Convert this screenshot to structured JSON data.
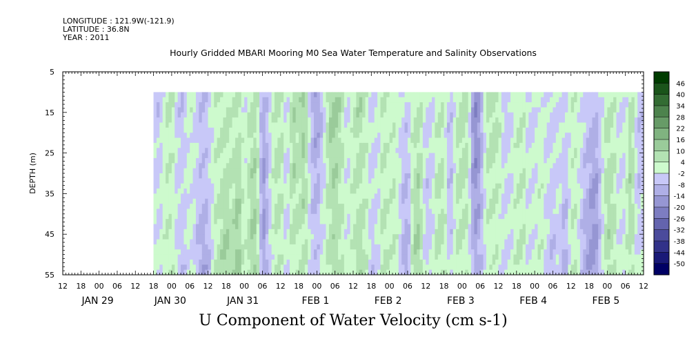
{
  "header": {
    "longitude": "LONGITUDE : 121.9W(-121.9)",
    "latitude": "LATITUDE : 36.8N",
    "year": "YEAR : 2011"
  },
  "title": "Hourly Gridded MBARI Mooring M0 Sea Water Temperature and Salinity Observations",
  "variable_title": "U Component of Water Velocity (cm s-1)",
  "chart_data": {
    "type": "heatmap",
    "title": "Hourly Gridded MBARI Mooring M0 Sea Water Temperature and Salinity Observations",
    "xlabel": "",
    "ylabel": "DEPTH (m)",
    "units": "cm s-1",
    "x_range_hours": [
      -12,
      180
    ],
    "data_start_hour": 18,
    "y_range": [
      5,
      55
    ],
    "y_reversed": true,
    "data_depth_range": [
      10,
      55
    ],
    "y_ticks": [
      5,
      15,
      25,
      35,
      45,
      55
    ],
    "x_hour_ticks": [
      "12",
      "18",
      "00",
      "06",
      "12",
      "18",
      "00",
      "06",
      "12",
      "18",
      "00",
      "06",
      "12",
      "18",
      "00",
      "06",
      "12",
      "18",
      "00",
      "06",
      "12",
      "18",
      "00",
      "06",
      "12",
      "18",
      "00",
      "06",
      "12",
      "18",
      "00",
      "06",
      "12"
    ],
    "date_labels": [
      {
        "label": "JAN 29",
        "hour": 0
      },
      {
        "label": "JAN 30",
        "hour": 24
      },
      {
        "label": "JAN 31",
        "hour": 48
      },
      {
        "label": "FEB  1",
        "hour": 72
      },
      {
        "label": "FEB  2",
        "hour": 96
      },
      {
        "label": "FEB  3",
        "hour": 120
      },
      {
        "label": "FEB  4",
        "hour": 144
      },
      {
        "label": "FEB  5",
        "hour": 168
      }
    ],
    "colorbar": {
      "levels": [
        -50,
        -44,
        -38,
        -32,
        -26,
        -20,
        -14,
        -8,
        -2,
        4,
        10,
        16,
        22,
        28,
        34,
        40,
        46
      ],
      "labels": [
        "46",
        "40",
        "34",
        "28",
        "22",
        "16",
        "10",
        "4",
        "-2",
        "-8",
        "-14",
        "-20",
        "-26",
        "-32",
        "-38",
        "-44",
        "-50"
      ],
      "low_color": "#000066",
      "high_color": "#003c00"
    },
    "time_profile": [
      {
        "hour": 18,
        "value": -4
      },
      {
        "hour": 20,
        "value": -6
      },
      {
        "hour": 22,
        "value": 3
      },
      {
        "hour": 24,
        "value": 5
      },
      {
        "hour": 26,
        "value": -6
      },
      {
        "hour": 28,
        "value": -8
      },
      {
        "hour": 30,
        "value": 4
      },
      {
        "hour": 32,
        "value": -5
      },
      {
        "hour": 34,
        "value": -12
      },
      {
        "hour": 36,
        "value": -9
      },
      {
        "hour": 38,
        "value": 3
      },
      {
        "hour": 40,
        "value": 6
      },
      {
        "hour": 42,
        "value": 9
      },
      {
        "hour": 44,
        "value": 4
      },
      {
        "hour": 46,
        "value": 10
      },
      {
        "hour": 48,
        "value": -2
      },
      {
        "hour": 50,
        "value": 6
      },
      {
        "hour": 52,
        "value": 8
      },
      {
        "hour": 54,
        "value": -14
      },
      {
        "hour": 56,
        "value": -6
      },
      {
        "hour": 58,
        "value": 4
      },
      {
        "hour": 60,
        "value": 6
      },
      {
        "hour": 62,
        "value": -3
      },
      {
        "hour": 64,
        "value": 8
      },
      {
        "hour": 66,
        "value": 5
      },
      {
        "hour": 68,
        "value": 10
      },
      {
        "hour": 70,
        "value": -6
      },
      {
        "hour": 72,
        "value": -12
      },
      {
        "hour": 74,
        "value": -5
      },
      {
        "hour": 76,
        "value": 8
      },
      {
        "hour": 78,
        "value": 12
      },
      {
        "hour": 80,
        "value": 6
      },
      {
        "hour": 82,
        "value": -4
      },
      {
        "hour": 84,
        "value": 3
      },
      {
        "hour": 86,
        "value": 12
      },
      {
        "hour": 88,
        "value": 6
      },
      {
        "hour": 90,
        "value": -6
      },
      {
        "hour": 92,
        "value": -2
      },
      {
        "hour": 94,
        "value": 8
      },
      {
        "hour": 96,
        "value": 3
      },
      {
        "hour": 98,
        "value": 5
      },
      {
        "hour": 100,
        "value": -6
      },
      {
        "hour": 102,
        "value": -10
      },
      {
        "hour": 104,
        "value": 6
      },
      {
        "hour": 106,
        "value": 8
      },
      {
        "hour": 108,
        "value": -6
      },
      {
        "hour": 110,
        "value": -4
      },
      {
        "hour": 112,
        "value": 4
      },
      {
        "hour": 114,
        "value": 3
      },
      {
        "hour": 116,
        "value": -8
      },
      {
        "hour": 118,
        "value": 3
      },
      {
        "hour": 120,
        "value": 6
      },
      {
        "hour": 122,
        "value": 4
      },
      {
        "hour": 124,
        "value": -16
      },
      {
        "hour": 126,
        "value": -12
      },
      {
        "hour": 128,
        "value": 4
      },
      {
        "hour": 130,
        "value": 6
      },
      {
        "hour": 132,
        "value": 5
      },
      {
        "hour": 134,
        "value": -6
      },
      {
        "hour": 136,
        "value": -4
      },
      {
        "hour": 138,
        "value": 3
      },
      {
        "hour": 140,
        "value": 5
      },
      {
        "hour": 142,
        "value": -6
      },
      {
        "hour": 144,
        "value": -4
      },
      {
        "hour": 146,
        "value": 3
      },
      {
        "hour": 148,
        "value": -5
      },
      {
        "hour": 150,
        "value": -8
      },
      {
        "hour": 152,
        "value": -2
      },
      {
        "hour": 154,
        "value": -10
      },
      {
        "hour": 156,
        "value": 4
      },
      {
        "hour": 158,
        "value": 3
      },
      {
        "hour": 160,
        "value": -6
      },
      {
        "hour": 162,
        "value": -10
      },
      {
        "hour": 164,
        "value": -14
      },
      {
        "hour": 166,
        "value": -3
      },
      {
        "hour": 168,
        "value": 6
      },
      {
        "hour": 170,
        "value": 4
      },
      {
        "hour": 172,
        "value": -3
      },
      {
        "hour": 174,
        "value": -2
      },
      {
        "hour": 176,
        "value": 8
      },
      {
        "hour": 178,
        "value": -6
      },
      {
        "hour": 180,
        "value": -4
      }
    ]
  }
}
